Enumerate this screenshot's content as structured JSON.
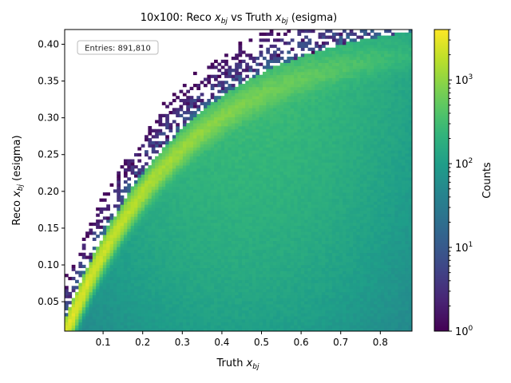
{
  "chart_data": {
    "type": "heatmap",
    "title": {
      "prefix": "10x100: Reco ",
      "mid": " vs Truth ",
      "suffix": " (esigma)"
    },
    "xlabel": {
      "text": "Truth "
    },
    "ylabel": {
      "text": "Reco ",
      "suffix": " (esigma)"
    },
    "var_base": "x",
    "var_sub": "bj",
    "colorbar_label": "Counts",
    "xlim": [
      0.003,
      0.88
    ],
    "ylim": [
      0.01,
      0.42
    ],
    "x_ticks": [
      0.1,
      0.2,
      0.3,
      0.4,
      0.5,
      0.6,
      0.7,
      0.8
    ],
    "x_tick_labels": [
      "0.1",
      "0.2",
      "0.3",
      "0.4",
      "0.5",
      "0.6",
      "0.7",
      "0.8"
    ],
    "y_ticks": [
      0.05,
      0.1,
      0.15,
      0.2,
      0.25,
      0.3,
      0.35,
      0.4
    ],
    "y_tick_labels": [
      "0.05",
      "0.10",
      "0.15",
      "0.20",
      "0.25",
      "0.30",
      "0.35",
      "0.40"
    ],
    "color_scale": "log",
    "colormap": "viridis",
    "zlim": [
      1,
      4000
    ],
    "colorbar_ticks": [
      {
        "value": 1,
        "base": "10",
        "exp": "0"
      },
      {
        "value": 10,
        "base": "10",
        "exp": "1"
      },
      {
        "value": 100,
        "base": "10",
        "exp": "2"
      },
      {
        "value": 1000,
        "base": "10",
        "exp": "3"
      }
    ],
    "annotation": "Entries: 891,810",
    "entries": 891810,
    "grid": false
  }
}
